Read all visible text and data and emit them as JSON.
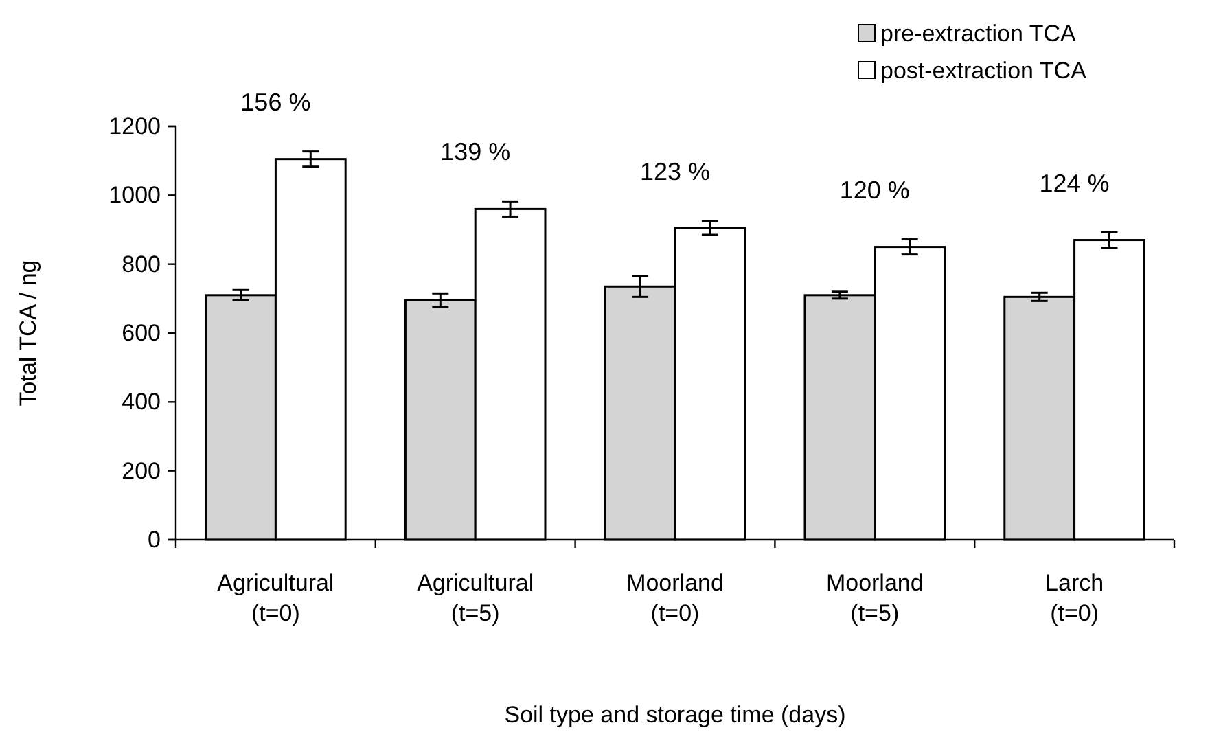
{
  "chart_data": {
    "type": "bar",
    "xlabel": "Soil type and storage time (days)",
    "ylabel": "Total TCA / ng",
    "categories": [
      "Agricultural\n(t=0)",
      "Agricultural\n(t=5)",
      "Moorland\n(t=0)",
      "Moorland\n(t=5)",
      "Larch\n(t=0)"
    ],
    "series": [
      {
        "name": "pre-extraction TCA",
        "color": "#d4d4d4",
        "values": [
          710,
          695,
          735,
          710,
          705
        ],
        "errors": [
          15,
          20,
          30,
          10,
          12
        ]
      },
      {
        "name": "post-extraction TCA",
        "color": "#ffffff",
        "values": [
          1105,
          960,
          905,
          850,
          870
        ],
        "errors": [
          22,
          22,
          20,
          22,
          22
        ]
      }
    ],
    "ylim": [
      0,
      1200
    ],
    "yticks": [
      0,
      200,
      400,
      600,
      800,
      1000,
      1200
    ],
    "grid": false,
    "legend": "top right",
    "annotations": [
      "156 %",
      "139 %",
      "123 %",
      "120 %",
      "124 %"
    ]
  }
}
